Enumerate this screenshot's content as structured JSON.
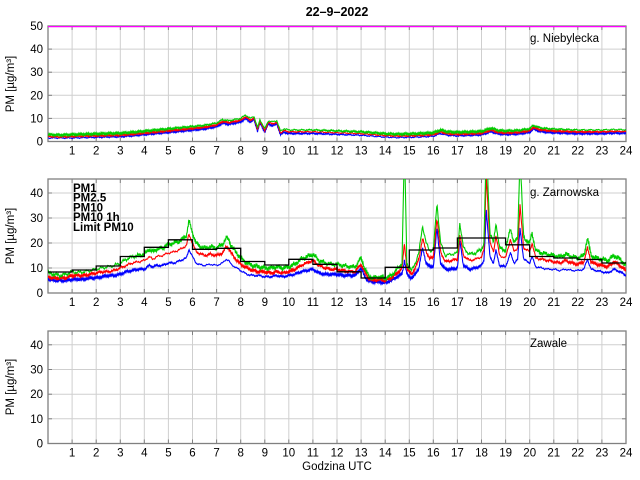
{
  "figure": {
    "title": "22–9–2022",
    "xlabel": "Godzina UTC",
    "ylabel": "PM [µg/m³]",
    "xtick_labels": [
      "1",
      "2",
      "3",
      "4",
      "5",
      "6",
      "7",
      "8",
      "9",
      "10",
      "11",
      "12",
      "13",
      "14",
      "15",
      "16",
      "17",
      "18",
      "19",
      "20",
      "21",
      "22",
      "23",
      "24"
    ]
  },
  "colors": {
    "pm1": "#0000ff",
    "pm25": "#ff0000",
    "pm10": "#00cc00",
    "pm10_1h": "#000000",
    "limit": "#ff00ff",
    "grid": "#cfcfcf",
    "frame": "#808080",
    "text": "#000000",
    "background": "#ffffff"
  },
  "legend": {
    "items": [
      {
        "label": "PM1",
        "color": "#0000ff"
      },
      {
        "label": "PM2.5",
        "color": "#ff0000"
      },
      {
        "label": "PM10",
        "color": "#00cc00"
      },
      {
        "label": "PM10 1h",
        "color": "#000000"
      },
      {
        "label": "Limit PM10",
        "color": "#ff00ff"
      }
    ]
  },
  "chart_data": [
    {
      "type": "line",
      "station": "g. Niebylecka",
      "xlim": [
        0,
        24
      ],
      "ylim": [
        0,
        50
      ],
      "yticks": [
        0,
        10,
        20,
        30,
        40,
        50
      ],
      "grid": true,
      "x": [
        0,
        0.5,
        1,
        1.5,
        2,
        2.5,
        3,
        3.5,
        4,
        4.5,
        5,
        5.5,
        6,
        6.5,
        7,
        7.25,
        7.5,
        7.75,
        8,
        8.2,
        8.4,
        8.55,
        8.7,
        8.8,
        9,
        9.15,
        9.3,
        9.5,
        9.65,
        9.8,
        10,
        10.5,
        11,
        11.5,
        12,
        12.5,
        13,
        13.5,
        14,
        14.5,
        15,
        15.5,
        16,
        16.3,
        16.6,
        17,
        17.5,
        18,
        18.4,
        18.7,
        19,
        19.5,
        20,
        20.15,
        20.4,
        20.7,
        21,
        21.5,
        22,
        22.5,
        23,
        23.5,
        24
      ],
      "series": [
        {
          "name": "PM1",
          "color": "#0000ff",
          "values": [
            1.5,
            1.5,
            1.5,
            1.7,
            1.8,
            2,
            2.1,
            2.5,
            3,
            3.5,
            4,
            4.5,
            5,
            5.5,
            6.5,
            8,
            7.5,
            8,
            8.5,
            10,
            8.5,
            9.5,
            4.5,
            8,
            4,
            7.5,
            7,
            7.5,
            3,
            4,
            3.5,
            3.5,
            3.5,
            3.3,
            3.1,
            2.9,
            2.7,
            2.3,
            1.9,
            1.7,
            1.8,
            2,
            2.3,
            3.5,
            2.7,
            2.5,
            2.7,
            2.9,
            4.3,
            3.3,
            3.1,
            3.3,
            4,
            5.5,
            4.5,
            4.1,
            3.9,
            3.7,
            3.5,
            3.5,
            3.5,
            3.7,
            3.6
          ]
        },
        {
          "name": "PM2.5",
          "color": "#ff0000",
          "values": [
            2.2,
            2,
            2.2,
            2.4,
            2.5,
            2.7,
            2.8,
            3.2,
            3.7,
            4.2,
            4.7,
            5.2,
            5.7,
            6.2,
            7.2,
            8.7,
            8.2,
            8.7,
            9.2,
            10.7,
            9.2,
            10.2,
            5.2,
            8.7,
            4.7,
            8.2,
            7.7,
            8.2,
            3.7,
            4.7,
            4.2,
            4.2,
            4.2,
            4,
            3.8,
            3.6,
            3.4,
            3,
            2.6,
            2.4,
            2.5,
            2.7,
            3,
            4.2,
            3.4,
            3.2,
            3.4,
            3.6,
            5,
            4,
            3.8,
            4,
            4.7,
            6.2,
            5.2,
            4.8,
            4.6,
            4.4,
            4.2,
            4.2,
            4.2,
            4.4,
            4.3
          ]
        },
        {
          "name": "PM10",
          "color": "#00cc00",
          "values": [
            3,
            2.8,
            3,
            3.2,
            3.3,
            3.5,
            3.6,
            4,
            4.5,
            5,
            5.5,
            6,
            6.5,
            7,
            8,
            9.5,
            9,
            9.5,
            10,
            11.5,
            10,
            11,
            6,
            9.5,
            5.5,
            9,
            8.5,
            9,
            4.5,
            5.5,
            5,
            5,
            5,
            4.8,
            4.6,
            4.4,
            4.2,
            3.8,
            3.4,
            3.2,
            3.3,
            3.5,
            3.8,
            5,
            4.2,
            4,
            4.2,
            4.4,
            5.8,
            4.8,
            4.6,
            4.8,
            5.5,
            7,
            6,
            5.6,
            5.4,
            5.2,
            5,
            5,
            5,
            5.2,
            5.1
          ]
        },
        {
          "name": "Limit PM10",
          "color": "#ff00ff",
          "type": "hline",
          "value": 50
        }
      ]
    },
    {
      "type": "line",
      "station": "g. Zarnowska",
      "xlim": [
        0,
        24
      ],
      "ylim": [
        0,
        45.6
      ],
      "yticks": [
        0,
        10,
        20,
        30,
        40
      ],
      "grid": true,
      "x": [
        0,
        0.25,
        0.5,
        0.75,
        1,
        1.25,
        1.5,
        1.75,
        2,
        2.25,
        2.5,
        2.75,
        3,
        3.25,
        3.5,
        3.75,
        4,
        4.2,
        4.35,
        4.5,
        4.75,
        5,
        5.25,
        5.5,
        5.75,
        5.85,
        6,
        6.15,
        6.25,
        6.5,
        6.75,
        7,
        7.25,
        7.4,
        7.5,
        7.6,
        7.75,
        8,
        8.25,
        8.5,
        8.75,
        9,
        9.25,
        9.5,
        9.75,
        10,
        10.25,
        10.5,
        10.75,
        11,
        11.25,
        11.5,
        11.75,
        12,
        12.25,
        12.5,
        12.75,
        13,
        13.15,
        13.3,
        13.5,
        13.75,
        14,
        14.25,
        14.5,
        14.7,
        14.8,
        14.9,
        15,
        15.1,
        15.25,
        15.4,
        15.55,
        15.7,
        15.85,
        16,
        16.15,
        16.3,
        16.5,
        16.75,
        17,
        17.1,
        17.25,
        17.5,
        17.75,
        18,
        18.1,
        18.2,
        18.35,
        18.5,
        18.6,
        18.75,
        19,
        19.2,
        19.35,
        19.5,
        19.6,
        19.75,
        20,
        20.1,
        20.25,
        20.5,
        20.75,
        21,
        21.25,
        21.5,
        21.75,
        22,
        22.25,
        22.4,
        22.55,
        22.75,
        23,
        23.25,
        23.5,
        23.75,
        24
      ],
      "series": [
        {
          "name": "PM1",
          "color": "#0000ff",
          "values": [
            5.5,
            5,
            5,
            5,
            5.5,
            5.5,
            5.5,
            6,
            6,
            6.5,
            7,
            7,
            7.5,
            8.5,
            9,
            9.5,
            9.5,
            11,
            10.5,
            11,
            11,
            12,
            12,
            13,
            14,
            17.5,
            14.5,
            12,
            11.5,
            11,
            11.5,
            11,
            12,
            13.5,
            13,
            11.5,
            10.5,
            9,
            7.5,
            7,
            7,
            6.5,
            6.5,
            7,
            6.5,
            7,
            7.5,
            8.5,
            9,
            9.5,
            8,
            7.5,
            7.5,
            7.5,
            7,
            7,
            7,
            10,
            6.5,
            5,
            4.5,
            4.5,
            4,
            5,
            6.5,
            7.5,
            13,
            7.5,
            6.5,
            6,
            7.5,
            10,
            18,
            12,
            10.5,
            10.5,
            26,
            12,
            9.5,
            9.5,
            10,
            21,
            11,
            9.5,
            10,
            11,
            13,
            33,
            14.5,
            12,
            17,
            11,
            10.5,
            16,
            12,
            13.5,
            26,
            13.5,
            12,
            14.5,
            10.5,
            10,
            9.5,
            9.5,
            9,
            9.5,
            9,
            9,
            9.5,
            13.5,
            9.5,
            9,
            8.5,
            8,
            9.5,
            8.5,
            7
          ]
        },
        {
          "name": "PM2.5",
          "color": "#ff0000",
          "values": [
            6.5,
            6,
            6,
            6,
            7,
            7,
            7,
            7.5,
            8,
            8.5,
            8.5,
            9,
            10,
            11,
            12,
            12.5,
            13,
            14.5,
            13.5,
            14.5,
            15,
            16,
            16.5,
            17.5,
            19,
            23.5,
            20,
            16.5,
            16,
            15,
            15.5,
            15,
            16,
            18.5,
            18,
            16,
            14,
            11.5,
            10,
            9,
            8.5,
            8.5,
            8,
            8.5,
            8,
            8.5,
            9.5,
            11,
            12,
            13,
            11,
            10,
            9.5,
            9.5,
            9,
            8.5,
            8.5,
            11.5,
            8.5,
            6,
            5,
            5.5,
            5,
            6,
            8,
            10,
            20,
            10,
            8.5,
            7.5,
            10,
            13.5,
            22,
            16.5,
            14,
            14,
            30,
            16.5,
            12.5,
            13,
            13.5,
            23,
            15,
            13,
            13.5,
            14.5,
            17,
            47,
            20,
            16.5,
            23,
            15,
            14,
            21.5,
            16.5,
            18,
            35,
            18,
            16.5,
            20,
            14,
            13.5,
            13,
            12.5,
            12,
            13,
            12,
            11.5,
            12.5,
            18,
            12.5,
            11.5,
            11,
            10.5,
            12.5,
            11,
            9
          ]
        },
        {
          "name": "PM10",
          "color": "#00cc00",
          "values": [
            8,
            7.5,
            7,
            7.5,
            8.5,
            8.2,
            8.5,
            9,
            9.5,
            10,
            10.5,
            11,
            12,
            13.5,
            14.5,
            15,
            15.5,
            17.5,
            16.5,
            17.5,
            18,
            19.5,
            20,
            21,
            23,
            29,
            24,
            20,
            19,
            18,
            18.5,
            18,
            19.5,
            22,
            21.5,
            19,
            17,
            14,
            12,
            11,
            10.5,
            10,
            10,
            10.5,
            10,
            10.5,
            11.5,
            13.5,
            14.5,
            15.5,
            13,
            12,
            11.5,
            11.5,
            11,
            10.5,
            10.5,
            14,
            10,
            7,
            6,
            6.5,
            6,
            7,
            9.5,
            12,
            60,
            12,
            10,
            9,
            12,
            16,
            27,
            20,
            17,
            17,
            36,
            20,
            15,
            15.5,
            16,
            28,
            18,
            15.5,
            16,
            17.5,
            20,
            60,
            24,
            20,
            28,
            18,
            17,
            26,
            20,
            22,
            55,
            22,
            20,
            24,
            17,
            16,
            15.5,
            15,
            14.5,
            15.5,
            14.5,
            14,
            15,
            22,
            15,
            14,
            13.5,
            13,
            15,
            13.5,
            11
          ]
        },
        {
          "name": "PM10 1h",
          "color": "#000000",
          "type": "step",
          "bin_start_hours": [
            0,
            1,
            2,
            3,
            4,
            5,
            6,
            7,
            8,
            9,
            10,
            11,
            12,
            13,
            14,
            15,
            16,
            17,
            18,
            19,
            20,
            21,
            22,
            23
          ],
          "values": [
            8.4,
            9.2,
            10.8,
            14.6,
            18.3,
            21.3,
            17.5,
            17.9,
            12.6,
            11.2,
            13.5,
            11.5,
            8.5,
            6,
            10.3,
            17.2,
            18,
            22,
            22,
            19.3,
            14.6,
            14,
            13.4,
            12
          ]
        },
        {
          "name": "Limit PM10",
          "color": "#ff00ff",
          "type": "hline",
          "value": 50
        }
      ]
    },
    {
      "type": "line",
      "station": "Zawale",
      "xlim": [
        0,
        24
      ],
      "ylim": [
        0,
        45.6
      ],
      "yticks": [
        0,
        10,
        20,
        30,
        40
      ],
      "grid": true,
      "x": [],
      "series": []
    }
  ]
}
